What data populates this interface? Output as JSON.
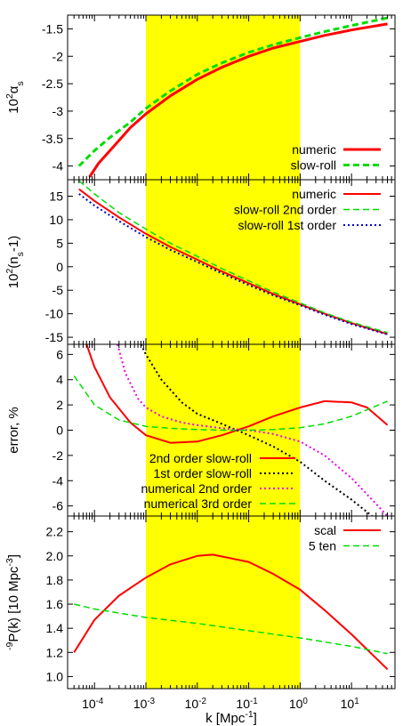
{
  "chart_data": {
    "type": "line",
    "shared_x": {
      "label": "k [Mpc",
      "label_sup": "-1",
      "label_end": "]",
      "scale": "log",
      "xlim": [
        3e-05,
        70
      ],
      "ticks": [
        {
          "value": 0.0001,
          "base": "10",
          "exp": "-4"
        },
        {
          "value": 0.001,
          "base": "10",
          "exp": "-3"
        },
        {
          "value": 0.01,
          "base": "10",
          "exp": "-2"
        },
        {
          "value": 0.1,
          "base": "10",
          "exp": "-1"
        },
        {
          "value": 1,
          "base": "10",
          "exp": "0"
        },
        {
          "value": 10,
          "base": "10",
          "exp": "1"
        }
      ]
    },
    "highlight_band": {
      "x": [
        0.001,
        1
      ],
      "color": "#ffff00"
    },
    "colors": {
      "red": "#ff0000",
      "green": "#00dd00",
      "blue": "#0000cc",
      "magenta": "#ee00ee",
      "black": "#000000"
    },
    "panels": [
      {
        "id": "alpha",
        "ylabel": {
          "pre": "10",
          "sup": "2",
          "main": "α",
          "sub": "s"
        },
        "ylim": [
          -4.25,
          -1.25
        ],
        "yticks": [
          "-4",
          "-3.5",
          "-3",
          "-2.5",
          "-2",
          "-1.5"
        ],
        "ytick_values": [
          -4,
          -3.5,
          -3,
          -2.5,
          -2,
          -1.5
        ],
        "legend_position": "bottom-right",
        "series": [
          {
            "name": "numeric",
            "color": "red",
            "dash": "solid",
            "width": 3,
            "x": [
              8e-05,
              0.00012,
              0.0002,
              0.0005,
              0.001,
              0.003,
              0.01,
              0.03,
              0.1,
              0.3,
              1,
              3,
              10,
              50
            ],
            "y": [
              -4.2,
              -3.95,
              -3.72,
              -3.3,
              -3.05,
              -2.72,
              -2.42,
              -2.2,
              -2.0,
              -1.85,
              -1.73,
              -1.62,
              -1.52,
              -1.41
            ]
          },
          {
            "name": "slow-roll",
            "color": "green",
            "dash": "dashed",
            "width": 3,
            "x": [
              5e-05,
              0.0001,
              0.0002,
              0.0005,
              0.001,
              0.003,
              0.01,
              0.03,
              0.1,
              0.3,
              1,
              3,
              10,
              50
            ],
            "y": [
              -4.0,
              -3.72,
              -3.48,
              -3.2,
              -2.95,
              -2.63,
              -2.33,
              -2.12,
              -1.93,
              -1.79,
              -1.66,
              -1.55,
              -1.44,
              -1.3
            ]
          }
        ]
      },
      {
        "id": "ns",
        "ylabel": {
          "pre": "10",
          "sup": "2",
          "main": "(n",
          "sub": "s",
          "post": "-1)"
        },
        "ylim": [
          -16.5,
          18.5
        ],
        "yticks": [
          "-15",
          "-10",
          "-5",
          "0",
          "5",
          "10",
          "15"
        ],
        "ytick_values": [
          -15,
          -10,
          -5,
          0,
          5,
          10,
          15
        ],
        "legend_position": "top-right",
        "series": [
          {
            "name": "numeric",
            "color": "red",
            "dash": "solid",
            "width": 2,
            "x": [
              5e-05,
              0.0001,
              0.0003,
              0.001,
              0.003,
              0.01,
              0.03,
              0.1,
              0.3,
              1,
              3,
              10,
              50
            ],
            "y": [
              16.5,
              14.0,
              10.5,
              7.0,
              4.2,
              1.5,
              -1.0,
              -3.5,
              -5.8,
              -8.0,
              -10.0,
              -12.0,
              -14.3
            ]
          },
          {
            "name": "slow-roll 2nd order",
            "color": "green",
            "dash": "dashed",
            "width": 1.5,
            "x": [
              5e-05,
              0.0001,
              0.0003,
              0.001,
              0.003,
              0.01,
              0.03,
              0.1,
              0.3,
              1,
              3,
              10,
              50
            ],
            "y": [
              18.3,
              15.5,
              11.5,
              8.0,
              5.0,
              2.2,
              -0.4,
              -3.0,
              -5.4,
              -7.7,
              -9.8,
              -11.8,
              -14.0
            ]
          },
          {
            "name": "slow-roll 1st order",
            "color": "blue",
            "dash": "dotted",
            "width": 2,
            "x": [
              5e-05,
              0.0001,
              0.0003,
              0.001,
              0.003,
              0.01,
              0.03,
              0.1,
              0.3,
              1,
              3,
              10,
              50
            ],
            "y": [
              15.5,
              13.0,
              9.7,
              6.3,
              3.6,
              1.0,
              -1.4,
              -3.9,
              -6.1,
              -8.2,
              -10.2,
              -12.2,
              -14.4
            ]
          }
        ]
      },
      {
        "id": "error",
        "ylabel": {
          "main": "error, %"
        },
        "ylim": [
          -6.8,
          6.8
        ],
        "yticks": [
          "-6",
          "-4",
          "-2",
          "0",
          "2",
          "4",
          "6"
        ],
        "ytick_values": [
          -6,
          -4,
          -2,
          0,
          2,
          4,
          6
        ],
        "legend_position": "bottom-left",
        "series": [
          {
            "name": "2nd order slow-roll",
            "color": "red",
            "dash": "solid",
            "width": 2,
            "x": [
              7e-05,
              0.0001,
              0.0002,
              0.0005,
              0.001,
              0.003,
              0.01,
              0.03,
              0.1,
              0.3,
              1,
              3,
              10,
              20,
              50
            ],
            "y": [
              6.8,
              5.0,
              2.6,
              0.6,
              -0.4,
              -1.0,
              -0.9,
              -0.4,
              0.3,
              1.1,
              1.8,
              2.3,
              2.2,
              1.8,
              0.4
            ]
          },
          {
            "name": "1st order slow-roll",
            "color": "black",
            "dash": "dotted",
            "width": 2,
            "x": [
              0.0008,
              0.001,
              0.002,
              0.005,
              0.01,
              0.03,
              0.1,
              0.3,
              1,
              3,
              10,
              25
            ],
            "y": [
              6.8,
              6.0,
              4.0,
              2.2,
              1.3,
              0.5,
              -0.4,
              -1.3,
              -2.5,
              -4.0,
              -5.5,
              -6.8
            ]
          },
          {
            "name": "numerical 2nd order",
            "color": "magenta",
            "dash": "dotted",
            "width": 2,
            "x": [
              0.00028,
              0.0004,
              0.0007,
              0.001,
              0.002,
              0.005,
              0.01,
              0.03,
              0.1,
              0.3,
              1,
              3,
              10,
              50
            ],
            "y": [
              6.8,
              4.5,
              2.5,
              1.8,
              1.1,
              0.6,
              0.4,
              0.15,
              0.0,
              -0.3,
              -0.9,
              -2.0,
              -3.8,
              -6.8
            ]
          },
          {
            "name": "numerical 3rd order",
            "color": "green",
            "dash": "dashed",
            "width": 1.5,
            "x": [
              4e-05,
              0.0001,
              0.0003,
              0.001,
              0.003,
              0.01,
              0.03,
              0.1,
              0.3,
              1,
              3,
              10,
              50
            ],
            "y": [
              4.3,
              2.0,
              0.8,
              0.3,
              0.15,
              0.05,
              0.0,
              0.0,
              0.05,
              0.2,
              0.5,
              1.1,
              2.3
            ]
          }
        ]
      },
      {
        "id": "pk",
        "ylabel": {
          "main": "P(k) [10",
          "sup": "-9",
          "mid": " Mpc",
          "sup2": "-3",
          "post": "]"
        },
        "ylim": [
          0.9,
          2.33
        ],
        "yticks": [
          "1.0",
          "1.2",
          "1.4",
          "1.6",
          "1.8",
          "2.0",
          "2.2"
        ],
        "ytick_values": [
          1.0,
          1.2,
          1.4,
          1.6,
          1.8,
          2.0,
          2.2
        ],
        "legend_position": "top-right",
        "series": [
          {
            "name": "scal",
            "color": "red",
            "dash": "solid",
            "width": 2,
            "x": [
              4e-05,
              0.0001,
              0.0003,
              0.001,
              0.003,
              0.01,
              0.02,
              0.1,
              0.3,
              1,
              3,
              10,
              50
            ],
            "y": [
              1.2,
              1.47,
              1.67,
              1.82,
              1.93,
              2.0,
              2.01,
              1.95,
              1.85,
              1.72,
              1.55,
              1.35,
              1.06
            ]
          },
          {
            "name": "5 ten",
            "color": "green",
            "dash": "dashed",
            "width": 1.5,
            "x": [
              4e-05,
              0.0001,
              0.001,
              0.01,
              0.1,
              1,
              10,
              50
            ],
            "y": [
              1.6,
              1.56,
              1.49,
              1.44,
              1.38,
              1.32,
              1.25,
              1.19
            ]
          }
        ]
      }
    ]
  }
}
